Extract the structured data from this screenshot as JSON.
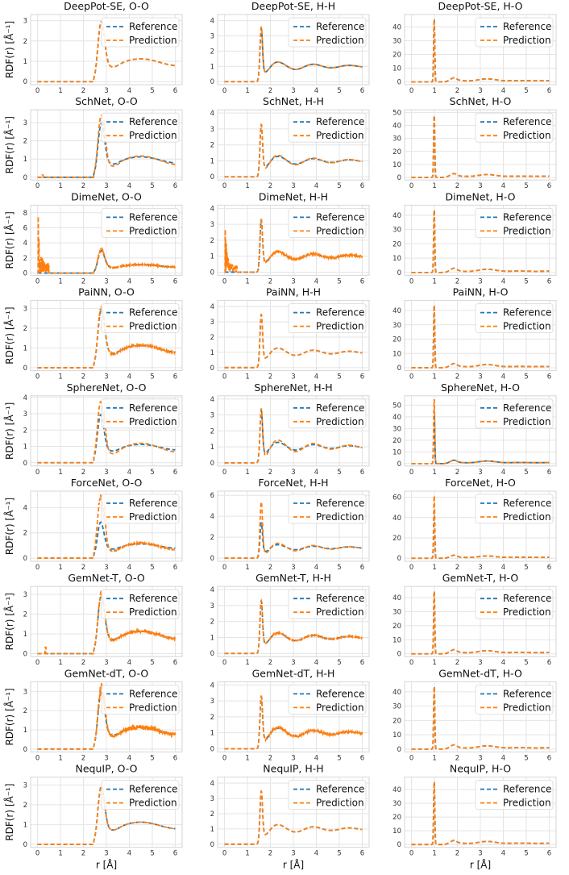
{
  "figure": {
    "rows": [
      "DeepPot-SE",
      "SchNet",
      "DimeNet",
      "PaiNN",
      "SphereNet",
      "ForceNet",
      "GemNet-T",
      "GemNet-dT",
      "NequIP"
    ],
    "columns": [
      "O-O",
      "H-H",
      "H-O"
    ],
    "ylabel": "RDF(r) [Å⁻¹]",
    "xlabel": "r [Å]",
    "legend": [
      "Reference",
      "Prediction"
    ],
    "colors": {
      "reference": "#1f77b4",
      "prediction": "#ff7f0e"
    }
  },
  "chart_data": [
    {
      "type": "line",
      "title": "DeepPot-SE, O-O",
      "pair": "O-O",
      "xlim": [
        0,
        6
      ],
      "ylim": [
        -0.15,
        3.3
      ],
      "xticks": [
        0,
        1,
        2,
        3,
        4,
        5,
        6
      ],
      "yticks": [
        0,
        1,
        2,
        3
      ],
      "peak_x": 2.78,
      "reference_peak": 3.1,
      "prediction_peak": 3.1,
      "shell_scale": 1.0,
      "noise": 0
    },
    {
      "type": "line",
      "title": "DeepPot-SE, H-H",
      "pair": "H-H",
      "xlim": [
        0,
        6
      ],
      "ylim": [
        -0.2,
        4.4
      ],
      "xticks": [
        0,
        1,
        2,
        3,
        4,
        5,
        6
      ],
      "yticks": [
        0,
        1,
        2,
        3,
        4
      ],
      "peak_x": 1.6,
      "reference_peak": 4.1,
      "prediction_peak": 4.2,
      "shell_scale": 1.0,
      "noise": 0
    },
    {
      "type": "line",
      "title": "DeepPot-SE, H-O",
      "pair": "H-O",
      "xlim": [
        0,
        6
      ],
      "ylim": [
        -2,
        49
      ],
      "xticks": [
        0,
        1,
        2,
        3,
        4,
        5,
        6
      ],
      "yticks": [
        0,
        10,
        20,
        30,
        40
      ],
      "peak_x": 0.99,
      "reference_peak": 46,
      "prediction_peak": 46,
      "shell_scale": 1.0,
      "noise": 0
    },
    {
      "type": "line",
      "title": "SchNet, O-O",
      "pair": "O-O",
      "xlim": [
        0,
        6
      ],
      "ylim": [
        -0.15,
        3.7
      ],
      "xticks": [
        0,
        1,
        2,
        3,
        4,
        5,
        6
      ],
      "yticks": [
        0,
        1,
        2,
        3
      ],
      "peak_x": 2.78,
      "reference_peak": 3.1,
      "prediction_peak": 3.55,
      "shell_scale": 1.4,
      "noise": 0,
      "spike": {
        "x": 0.22,
        "h": 0.12
      }
    },
    {
      "type": "line",
      "title": "SchNet, H-H",
      "pair": "H-H",
      "xlim": [
        0,
        6
      ],
      "ylim": [
        -0.2,
        4.2
      ],
      "xticks": [
        0,
        1,
        2,
        3,
        4,
        5,
        6
      ],
      "yticks": [
        0,
        1,
        2,
        3,
        4
      ],
      "peak_x": 1.6,
      "reference_peak": 3.9,
      "prediction_peak": 3.9,
      "shell_scale": 1.25,
      "noise": 0
    },
    {
      "type": "line",
      "title": "SchNet, H-O",
      "pair": "H-O",
      "xlim": [
        0,
        6
      ],
      "ylim": [
        -2,
        52
      ],
      "xticks": [
        0,
        1,
        2,
        3,
        4,
        5,
        6
      ],
      "yticks": [
        0,
        10,
        20,
        30,
        40,
        50
      ],
      "peak_x": 0.99,
      "reference_peak": 48,
      "prediction_peak": 48,
      "shell_scale": 1.0,
      "noise": 0
    },
    {
      "type": "line",
      "title": "DimeNet, O-O",
      "pair": "O-O",
      "xlim": [
        0,
        6
      ],
      "ylim": [
        -0.3,
        9.0
      ],
      "xticks": [
        0,
        1,
        2,
        3,
        4,
        5,
        6
      ],
      "yticks": [
        0,
        2,
        4,
        6,
        8
      ],
      "peak_x": 2.78,
      "reference_peak": 3.1,
      "prediction_peak": 3.3,
      "shell_scale": 1.0,
      "noise": 0.05,
      "burst": {
        "from": 0.03,
        "to": 0.5,
        "h": 8.7
      }
    },
    {
      "type": "line",
      "title": "DimeNet, H-H",
      "pair": "H-H",
      "xlim": [
        0,
        6
      ],
      "ylim": [
        -0.2,
        4.2
      ],
      "xticks": [
        0,
        1,
        2,
        3,
        4,
        5,
        6
      ],
      "yticks": [
        0,
        1,
        2,
        3,
        4
      ],
      "peak_x": 1.6,
      "reference_peak": 3.9,
      "prediction_peak": 3.9,
      "shell_scale": 1.0,
      "noise": 0.04,
      "burst": {
        "from": 0.03,
        "to": 0.55,
        "h": 3.0
      }
    },
    {
      "type": "line",
      "title": "DimeNet, H-O",
      "pair": "H-O",
      "xlim": [
        0,
        6
      ],
      "ylim": [
        -2,
        47
      ],
      "xticks": [
        0,
        1,
        2,
        3,
        4,
        5,
        6
      ],
      "yticks": [
        0,
        10,
        20,
        30,
        40
      ],
      "peak_x": 0.99,
      "reference_peak": 44,
      "prediction_peak": 44,
      "shell_scale": 1.0,
      "noise": 0
    },
    {
      "type": "line",
      "title": "PaiNN, O-O",
      "pair": "O-O",
      "xlim": [
        0,
        6
      ],
      "ylim": [
        -0.15,
        3.4
      ],
      "xticks": [
        0,
        1,
        2,
        3,
        4,
        5,
        6
      ],
      "yticks": [
        0,
        1,
        2,
        3
      ],
      "peak_x": 2.78,
      "reference_peak": 3.1,
      "prediction_peak": 3.2,
      "shell_scale": 1.1,
      "noise": 0.03
    },
    {
      "type": "line",
      "title": "PaiNN, H-H",
      "pair": "H-H",
      "xlim": [
        0,
        6
      ],
      "ylim": [
        -0.2,
        4.4
      ],
      "xticks": [
        0,
        1,
        2,
        3,
        4,
        5,
        6
      ],
      "yticks": [
        0,
        1,
        2,
        3,
        4
      ],
      "peak_x": 1.6,
      "reference_peak": 4.1,
      "prediction_peak": 4.1,
      "shell_scale": 1.0,
      "noise": 0
    },
    {
      "type": "line",
      "title": "PaiNN, H-O",
      "pair": "H-O",
      "xlim": [
        0,
        6
      ],
      "ylim": [
        -2,
        47
      ],
      "xticks": [
        0,
        1,
        2,
        3,
        4,
        5,
        6
      ],
      "yticks": [
        0,
        10,
        20,
        30,
        40
      ],
      "peak_x": 0.99,
      "reference_peak": 44,
      "prediction_peak": 44,
      "shell_scale": 1.0,
      "noise": 0
    },
    {
      "type": "line",
      "title": "SphereNet, O-O",
      "pair": "O-O",
      "xlim": [
        0,
        6
      ],
      "ylim": [
        -0.2,
        4.1
      ],
      "xticks": [
        0,
        1,
        2,
        3,
        4,
        5,
        6
      ],
      "yticks": [
        0,
        1,
        2,
        3,
        4
      ],
      "peak_x": 2.75,
      "reference_peak": 3.1,
      "prediction_peak": 3.9,
      "shell_scale": 1.6,
      "noise": 0
    },
    {
      "type": "line",
      "title": "SphereNet, H-H",
      "pair": "H-H",
      "xlim": [
        0,
        6
      ],
      "ylim": [
        -0.2,
        4.2
      ],
      "xticks": [
        0,
        1,
        2,
        3,
        4,
        5,
        6
      ],
      "yticks": [
        0,
        1,
        2,
        3,
        4
      ],
      "peak_x": 1.6,
      "reference_peak": 3.9,
      "prediction_peak": 4.0,
      "shell_scale": 1.5,
      "noise": 0
    },
    {
      "type": "line",
      "title": "SphereNet, H-O",
      "pair": "H-O",
      "xlim": [
        0,
        6
      ],
      "ylim": [
        -2,
        58
      ],
      "xticks": [
        0,
        1,
        2,
        3,
        4,
        5,
        6
      ],
      "yticks": [
        0,
        10,
        20,
        30,
        40,
        50
      ],
      "peak_x": 0.99,
      "reference_peak": 45,
      "prediction_peak": 55,
      "shell_scale": 1.0,
      "noise": 0
    },
    {
      "type": "line",
      "title": "ForceNet, O-O",
      "pair": "O-O",
      "xlim": [
        0,
        6
      ],
      "ylim": [
        -0.25,
        5.3
      ],
      "xticks": [
        0,
        1,
        2,
        3,
        4,
        5,
        6
      ],
      "yticks": [
        0,
        2,
        4
      ],
      "peak_x": 2.75,
      "reference_peak": 3.0,
      "prediction_peak": 5.0,
      "shell_scale": 1.6,
      "noise": 0.03
    },
    {
      "type": "line",
      "title": "ForceNet, H-H",
      "pair": "H-H",
      "xlim": [
        0,
        6
      ],
      "ylim": [
        -0.3,
        6.4
      ],
      "xticks": [
        0,
        1,
        2,
        3,
        4,
        5,
        6
      ],
      "yticks": [
        0,
        2,
        4,
        6
      ],
      "peak_x": 1.6,
      "reference_peak": 4.0,
      "prediction_peak": 6.0,
      "shell_scale": 1.5,
      "noise": 0
    },
    {
      "type": "line",
      "title": "ForceNet, H-O",
      "pair": "H-O",
      "xlim": [
        0,
        6
      ],
      "ylim": [
        -3,
        66
      ],
      "xticks": [
        0,
        1,
        2,
        3,
        4,
        5,
        6
      ],
      "yticks": [
        0,
        20,
        40,
        60
      ],
      "peak_x": 0.99,
      "reference_peak": 46,
      "prediction_peak": 62,
      "shell_scale": 1.0,
      "noise": 0
    },
    {
      "type": "line",
      "title": "GemNet-T, O-O",
      "pair": "O-O",
      "xlim": [
        0,
        6
      ],
      "ylim": [
        -0.15,
        3.4
      ],
      "xticks": [
        0,
        1,
        2,
        3,
        4,
        5,
        6
      ],
      "yticks": [
        0,
        1,
        2,
        3
      ],
      "peak_x": 2.78,
      "reference_peak": 3.1,
      "prediction_peak": 3.2,
      "shell_scale": 1.15,
      "noise": 0.05,
      "spike": {
        "x": 0.35,
        "h": 0.32
      }
    },
    {
      "type": "line",
      "title": "GemNet-T, H-H",
      "pair": "H-H",
      "xlim": [
        0,
        6
      ],
      "ylim": [
        -0.2,
        4.2
      ],
      "xticks": [
        0,
        1,
        2,
        3,
        4,
        5,
        6
      ],
      "yticks": [
        0,
        1,
        2,
        3,
        4
      ],
      "peak_x": 1.6,
      "reference_peak": 3.9,
      "prediction_peak": 3.9,
      "shell_scale": 1.0,
      "noise": 0.02
    },
    {
      "type": "line",
      "title": "GemNet-T, H-O",
      "pair": "H-O",
      "xlim": [
        0,
        6
      ],
      "ylim": [
        -2,
        48
      ],
      "xticks": [
        0,
        1,
        2,
        3,
        4,
        5,
        6
      ],
      "yticks": [
        0,
        10,
        20,
        30,
        40
      ],
      "peak_x": 0.99,
      "reference_peak": 45,
      "prediction_peak": 45,
      "shell_scale": 1.0,
      "noise": 0
    },
    {
      "type": "line",
      "title": "GemNet-dT, O-O",
      "pair": "O-O",
      "xlim": [
        0,
        6
      ],
      "ylim": [
        -0.15,
        3.5
      ],
      "xticks": [
        0,
        1,
        2,
        3,
        4,
        5,
        6
      ],
      "yticks": [
        0,
        1,
        2,
        3
      ],
      "peak_x": 2.78,
      "reference_peak": 3.1,
      "prediction_peak": 3.3,
      "shell_scale": 1.2,
      "noise": 0.1
    },
    {
      "type": "line",
      "title": "GemNet-dT, H-H",
      "pair": "H-H",
      "xlim": [
        0,
        6
      ],
      "ylim": [
        -0.2,
        4.2
      ],
      "xticks": [
        0,
        1,
        2,
        3,
        4,
        5,
        6
      ],
      "yticks": [
        0,
        1,
        2,
        3,
        4
      ],
      "peak_x": 1.6,
      "reference_peak": 3.9,
      "prediction_peak": 3.9,
      "shell_scale": 1.15,
      "noise": 0.05
    },
    {
      "type": "line",
      "title": "GemNet-dT, H-O",
      "pair": "H-O",
      "xlim": [
        0,
        6
      ],
      "ylim": [
        -2,
        47
      ],
      "xticks": [
        0,
        1,
        2,
        3,
        4,
        5,
        6
      ],
      "yticks": [
        0,
        10,
        20,
        30,
        40
      ],
      "peak_x": 0.99,
      "reference_peak": 44,
      "prediction_peak": 44,
      "shell_scale": 1.0,
      "noise": 0
    },
    {
      "type": "line",
      "title": "NequIP, O-O",
      "pair": "O-O",
      "xlim": [
        0,
        6
      ],
      "ylim": [
        -0.15,
        3.4
      ],
      "xticks": [
        0,
        1,
        2,
        3,
        4,
        5,
        6
      ],
      "yticks": [
        0,
        1,
        2,
        3
      ],
      "peak_x": 2.78,
      "reference_peak": 3.1,
      "prediction_peak": 3.05,
      "shell_scale": 1.0,
      "noise": 0
    },
    {
      "type": "line",
      "title": "NequIP, H-H",
      "pair": "H-H",
      "xlim": [
        0,
        6
      ],
      "ylim": [
        -0.2,
        4.4
      ],
      "xticks": [
        0,
        1,
        2,
        3,
        4,
        5,
        6
      ],
      "yticks": [
        0,
        1,
        2,
        3,
        4
      ],
      "peak_x": 1.6,
      "reference_peak": 4.1,
      "prediction_peak": 4.1,
      "shell_scale": 1.0,
      "noise": 0
    },
    {
      "type": "line",
      "title": "NequIP, H-O",
      "pair": "H-O",
      "xlim": [
        0,
        6
      ],
      "ylim": [
        -2,
        49
      ],
      "xticks": [
        0,
        1,
        2,
        3,
        4,
        5,
        6
      ],
      "yticks": [
        0,
        10,
        20,
        30,
        40
      ],
      "peak_x": 0.99,
      "reference_peak": 46,
      "prediction_peak": 46,
      "shell_scale": 1.0,
      "noise": 0
    }
  ]
}
